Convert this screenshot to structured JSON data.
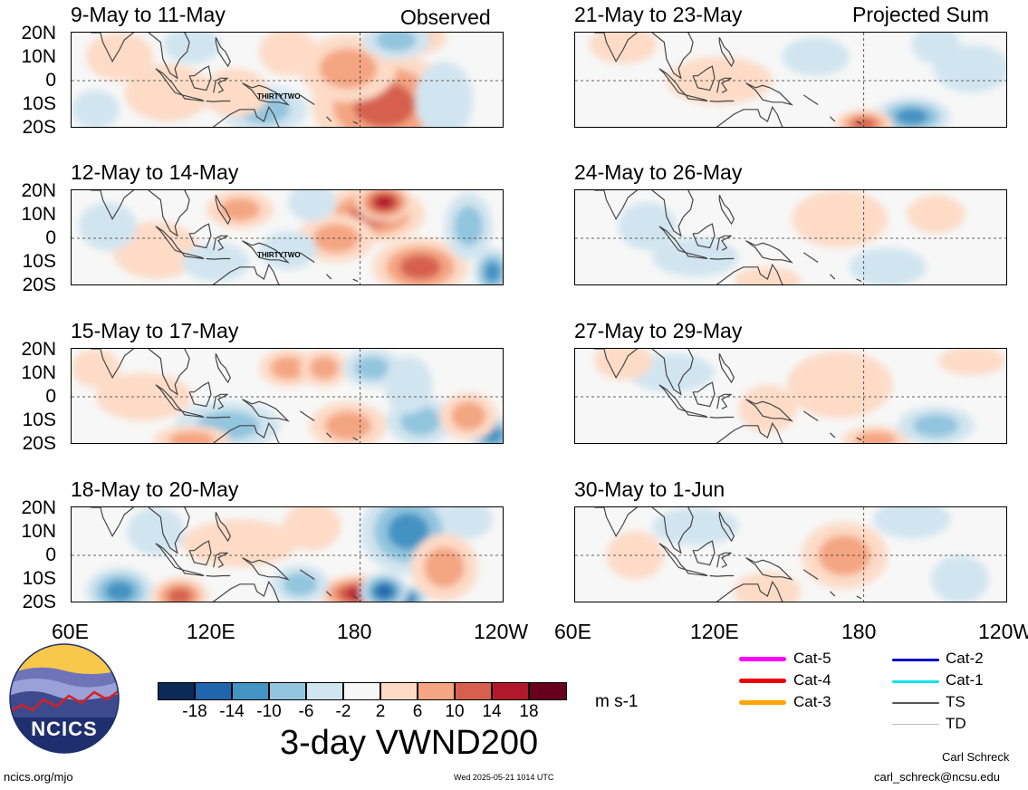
{
  "headers": {
    "left_mode": "Observed",
    "right_mode": "Projected Sum"
  },
  "lat_labels": [
    "20N",
    "10N",
    "0",
    "10S",
    "20S"
  ],
  "lon_labels_left": [
    "60E",
    "120E",
    "180",
    "120W"
  ],
  "lon_labels_right": [
    "60E",
    "120E",
    "180",
    "120W"
  ],
  "observed_panels": [
    {
      "title": "9-May to 11-May",
      "storm_label": "THIRTYTWO"
    },
    {
      "title": "12-May to 14-May",
      "storm_label": "THIRTYTWO"
    },
    {
      "title": "15-May to 17-May",
      "storm_label": ""
    },
    {
      "title": "18-May to 20-May",
      "storm_label": ""
    }
  ],
  "projected_panels": [
    {
      "title": "21-May to 23-May"
    },
    {
      "title": "24-May to 26-May"
    },
    {
      "title": "27-May to 29-May"
    },
    {
      "title": "30-May to 1-Jun"
    }
  ],
  "colorbar": {
    "ticks": [
      "-18",
      "-14",
      "-10",
      "-6",
      "-2",
      "2",
      "6",
      "10",
      "14",
      "18"
    ],
    "colors": [
      "#0b2a55",
      "#2166ac",
      "#4393c3",
      "#92c5de",
      "#d1e5f0",
      "#f7f7f7",
      "#fddbc7",
      "#f4a582",
      "#d6604d",
      "#b2182b",
      "#67001f"
    ],
    "units": "m s-1",
    "title": "3-day VWND200"
  },
  "legend": [
    {
      "label": "Cat-5",
      "color": "#ff00ff"
    },
    {
      "label": "Cat-4",
      "color": "#ee0000"
    },
    {
      "label": "Cat-3",
      "color": "#ffa500"
    },
    {
      "label": "Cat-2",
      "color": "#0000cc"
    },
    {
      "label": "Cat-1",
      "color": "#00e5ee"
    },
    {
      "label": "TS",
      "color": "#555555"
    },
    {
      "label": "TD",
      "color": "#bbbbbb"
    }
  ],
  "logo": {
    "text": "NCICS"
  },
  "footer": {
    "url": "ncics.org/mjo",
    "timestamp": "Wed 2025-05-21 1014 UTC",
    "author": "Carl Schreck",
    "email": "carl_schreck@ncsu.edu"
  }
}
